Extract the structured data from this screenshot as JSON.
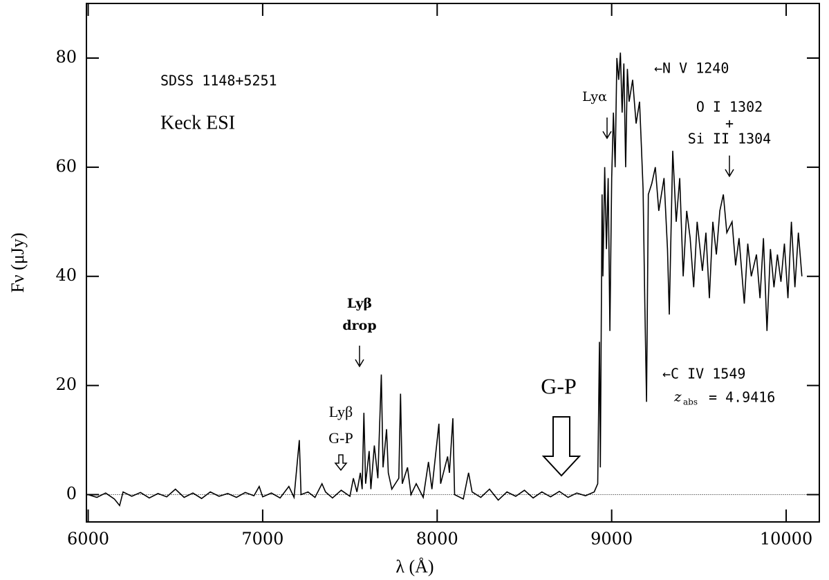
{
  "chart_data": {
    "type": "line",
    "x_label": "λ (Å)",
    "y_label": "Fν (μJy)",
    "annotations": {
      "object": "SDSS 1148+5251",
      "instrument": "Keck ESI",
      "lya": "Lyα",
      "nv": "←N V 1240",
      "oi": "O I 1302",
      "plus": "+",
      "siii": "Si II 1304",
      "lyb_drop_1": "Lyβ",
      "lyb_drop_2": "drop",
      "gp": "G-P",
      "lyb_gp_1": "Lyβ",
      "lyb_gp_2": "G-P",
      "civ": "←C IV 1549",
      "zabs": "z",
      "zabs_sub": "abs",
      "zabs_val": "= 4.9416"
    },
    "xlim": [
      5990,
      10190
    ],
    "ylim": [
      -5,
      90
    ],
    "xticks": [
      6000,
      7000,
      8000,
      9000,
      10000
    ],
    "yticks": [
      0,
      20,
      40,
      60,
      80
    ],
    "series": [
      {
        "color": "#000000",
        "x": [
          6000,
          6050,
          6100,
          6150,
          6180,
          6200,
          6250,
          6300,
          6350,
          6400,
          6450,
          6500,
          6550,
          6600,
          6650,
          6700,
          6750,
          6800,
          6850,
          6900,
          6950,
          6980,
          7000,
          7050,
          7100,
          7150,
          7180,
          7210,
          7220,
          7260,
          7300,
          7340,
          7360,
          7400,
          7450,
          7500,
          7520,
          7540,
          7560,
          7570,
          7580,
          7590,
          7610,
          7620,
          7640,
          7660,
          7680,
          7690,
          7710,
          7720,
          7740,
          7780,
          7790,
          7800,
          7830,
          7850,
          7880,
          7920,
          7950,
          7970,
          8010,
          8020,
          8060,
          8070,
          8090,
          8100,
          8150,
          8180,
          8200,
          8250,
          8300,
          8350,
          8400,
          8450,
          8500,
          8550,
          8600,
          8650,
          8700,
          8750,
          8800,
          8850,
          8900,
          8920,
          8930,
          8935,
          8945,
          8950,
          8960,
          8970,
          8980,
          8990,
          9000,
          9010,
          9020,
          9030,
          9040,
          9050,
          9060,
          9070,
          9080,
          9090,
          9100,
          9120,
          9140,
          9160,
          9170,
          9180,
          9190,
          9200,
          9210,
          9230,
          9250,
          9270,
          9300,
          9320,
          9330,
          9350,
          9370,
          9390,
          9410,
          9430,
          9450,
          9470,
          9490,
          9520,
          9540,
          9560,
          9580,
          9600,
          9620,
          9640,
          9660,
          9690,
          9710,
          9730,
          9760,
          9780,
          9800,
          9830,
          9850,
          9870,
          9890,
          9910,
          9930,
          9950,
          9970,
          9990,
          10010,
          10030,
          10050,
          10070,
          10090
        ],
        "values": [
          0,
          -0.5,
          0.3,
          -0.8,
          -2,
          0.5,
          -0.3,
          0.4,
          -0.6,
          0.2,
          -0.4,
          1,
          -0.5,
          0.3,
          -0.7,
          0.5,
          -0.3,
          0.2,
          -0.5,
          0.4,
          -0.2,
          1.5,
          -0.4,
          0.3,
          -0.6,
          1.5,
          -0.5,
          10,
          0,
          0.5,
          -0.5,
          2,
          0.5,
          -0.6,
          0.8,
          -0.3,
          3,
          0.5,
          4,
          1,
          15,
          2,
          8,
          1,
          9,
          3,
          22,
          5,
          12,
          4,
          1,
          3,
          18.5,
          2,
          5,
          0,
          2,
          -0.5,
          6,
          1,
          13,
          2,
          7,
          4,
          14,
          0,
          -0.8,
          4,
          0.5,
          -0.5,
          1,
          -1,
          0.5,
          -0.3,
          0.8,
          -0.6,
          0.5,
          -0.4,
          0.6,
          -0.5,
          0.3,
          -0.2,
          0.5,
          2,
          28,
          5,
          55,
          40,
          60,
          45,
          58,
          30,
          58,
          70,
          60,
          80,
          76,
          81,
          70,
          79,
          60,
          78,
          72,
          76,
          68,
          72,
          64,
          56,
          35,
          17,
          55,
          57,
          60,
          52,
          58,
          45,
          33,
          63,
          50,
          58,
          40,
          52,
          47,
          38,
          50,
          41,
          48,
          36,
          50,
          44,
          52,
          55,
          48,
          50,
          42,
          47,
          35,
          46,
          40,
          44,
          36,
          47,
          30,
          45,
          38,
          44,
          39,
          46,
          36,
          50,
          38,
          48,
          40
        ]
      }
    ]
  }
}
